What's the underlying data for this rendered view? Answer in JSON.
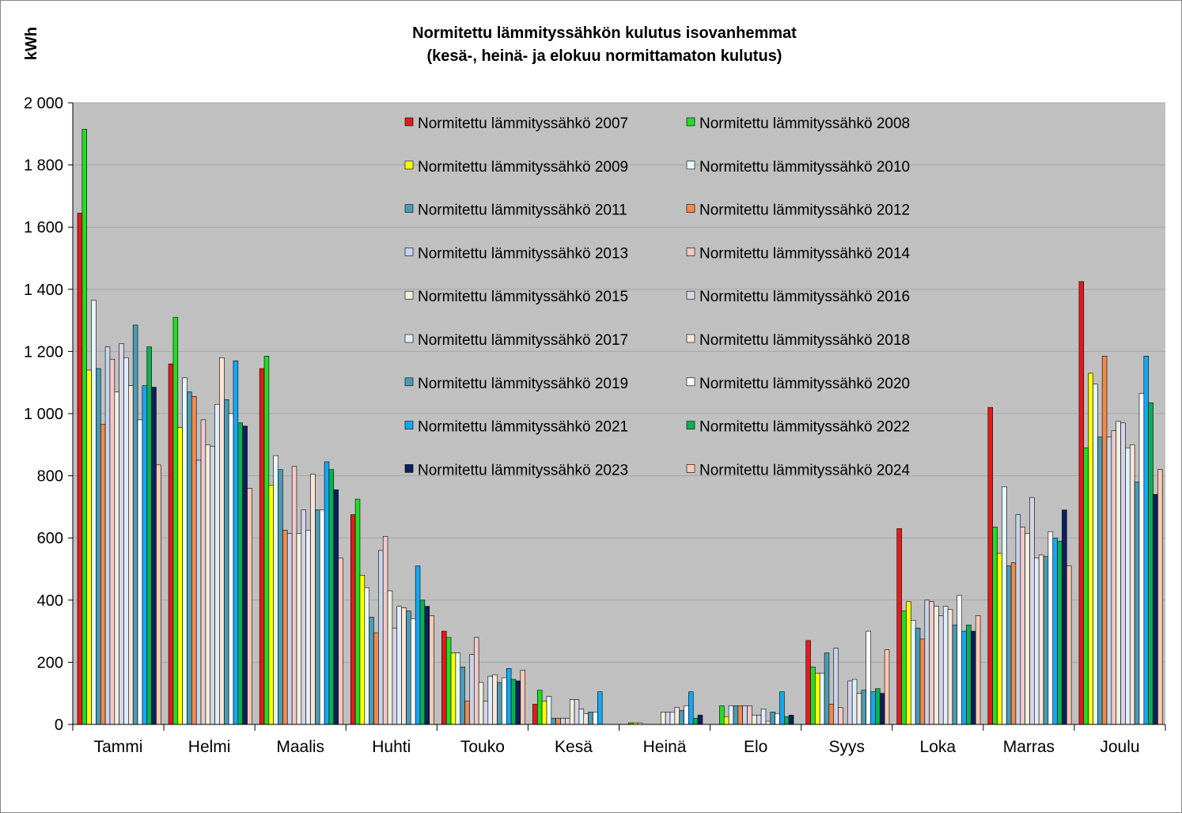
{
  "chart_data": {
    "type": "bar",
    "title": "Normitettu lämmityssähkön  kulutus isovanhemmat",
    "subtitle": "(kesä-, heinä- ja elokuu normittamaton kulutus)",
    "xlabel": "",
    "ylabel": "kWh",
    "ylim": [
      0,
      2000
    ],
    "yticks": [
      0,
      200,
      400,
      600,
      800,
      1000,
      1200,
      1400,
      1600,
      1800,
      2000
    ],
    "ytick_labels": [
      "0",
      "200",
      "400",
      "600",
      "800",
      "1 000",
      "1 200",
      "1 400",
      "1 600",
      "1 800",
      "2 000"
    ],
    "grid": true,
    "legend_position": "top-right",
    "categories": [
      "Tammi",
      "Helmi",
      "Maalis",
      "Huhti",
      "Touko",
      "Kesä",
      "Heinä",
      "Elo",
      "Syys",
      "Loka",
      "Marras",
      "Joulu"
    ],
    "series": [
      {
        "name": "Normitettu lämmityssähkö 2007",
        "color": "#e31a1c",
        "values": [
          1645,
          1160,
          1145,
          675,
          300,
          65,
          0,
          0,
          270,
          630,
          1020,
          1425
        ]
      },
      {
        "name": "Normitettu lämmityssähkö 2008",
        "color": "#22dd22",
        "values": [
          1915,
          1310,
          1185,
          725,
          280,
          110,
          5,
          60,
          185,
          365,
          635,
          890
        ]
      },
      {
        "name": "Normitettu lämmityssähkö 2009",
        "color": "#ffff00",
        "values": [
          1140,
          955,
          770,
          480,
          230,
          75,
          5,
          25,
          165,
          395,
          550,
          1130
        ]
      },
      {
        "name": "Normitettu lämmityssähkö 2010",
        "color": "#e6f8ff",
        "values": [
          1365,
          1115,
          865,
          440,
          230,
          90,
          5,
          60,
          165,
          335,
          765,
          1095
        ]
      },
      {
        "name": "Normitettu lämmityssähkö 2011",
        "color": "#4a9bb5",
        "values": [
          1145,
          1070,
          820,
          345,
          185,
          20,
          0,
          60,
          230,
          310,
          510,
          925
        ]
      },
      {
        "name": "Normitettu lämmityssähkö 2012",
        "color": "#f08a4b",
        "values": [
          965,
          1055,
          625,
          295,
          75,
          20,
          0,
          60,
          65,
          275,
          520,
          1185
        ]
      },
      {
        "name": "Normitettu lämmityssähkö 2013",
        "color": "#c6d4ec",
        "values": [
          1215,
          850,
          615,
          560,
          225,
          20,
          0,
          60,
          245,
          400,
          675,
          925
        ]
      },
      {
        "name": "Normitettu lämmityssähkö 2014",
        "color": "#f2c8c8",
        "values": [
          1175,
          980,
          830,
          605,
          280,
          20,
          0,
          60,
          55,
          395,
          635,
          945
        ]
      },
      {
        "name": "Normitettu lämmityssähkö 2015",
        "color": "#eaf1dd",
        "values": [
          1070,
          900,
          615,
          430,
          135,
          80,
          40,
          30,
          0,
          380,
          615,
          975
        ]
      },
      {
        "name": "Normitettu lämmityssähkö 2016",
        "color": "#d9d3e8",
        "values": [
          1225,
          895,
          690,
          310,
          75,
          80,
          40,
          30,
          140,
          350,
          730,
          970
        ]
      },
      {
        "name": "Normitettu lämmityssähkö 2017",
        "color": "#dcefff",
        "values": [
          1180,
          1030,
          625,
          380,
          155,
          50,
          40,
          50,
          145,
          380,
          535,
          890
        ]
      },
      {
        "name": "Normitettu lämmityssähkö 2018",
        "color": "#fce4d6",
        "values": [
          1090,
          1180,
          805,
          375,
          160,
          35,
          55,
          10,
          100,
          370,
          545,
          900
        ]
      },
      {
        "name": "Normitettu lämmityssähkö 2019",
        "color": "#4a9bb5",
        "values": [
          1285,
          1045,
          690,
          365,
          135,
          40,
          45,
          40,
          110,
          320,
          540,
          780
        ]
      },
      {
        "name": "Normitettu lämmityssähkö 2020",
        "color": "#ffffff",
        "values": [
          980,
          1000,
          690,
          340,
          150,
          40,
          60,
          35,
          300,
          415,
          620,
          1065
        ]
      },
      {
        "name": "Normitettu lämmityssähkö 2021",
        "color": "#13a8f5",
        "values": [
          1090,
          1170,
          845,
          510,
          180,
          105,
          105,
          105,
          105,
          300,
          600,
          1185
        ]
      },
      {
        "name": "Normitettu lämmityssähkö 2022",
        "color": "#0bb04f",
        "values": [
          1215,
          970,
          820,
          400,
          145,
          0,
          20,
          25,
          115,
          320,
          590,
          1035
        ]
      },
      {
        "name": "Normitettu lämmityssähkö 2023",
        "color": "#0b1f5e",
        "values": [
          1085,
          960,
          755,
          380,
          140,
          0,
          30,
          30,
          100,
          300,
          690,
          740
        ]
      },
      {
        "name": "Normitettu lämmityssähkö 2024",
        "color": "#fac9b1",
        "values": [
          835,
          760,
          535,
          350,
          175,
          0,
          0,
          0,
          240,
          350,
          510,
          820
        ]
      }
    ]
  }
}
